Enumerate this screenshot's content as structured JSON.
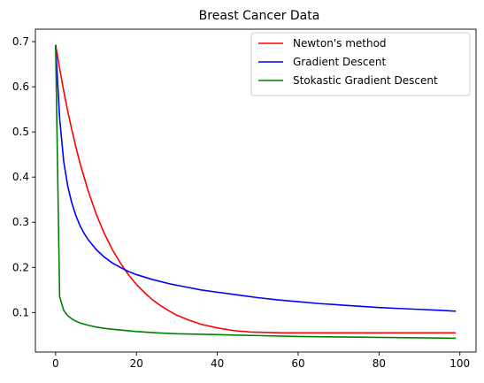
{
  "chart_data": {
    "type": "line",
    "title": "Breast Cancer Data",
    "xlabel": "",
    "ylabel": "",
    "xlim": [
      -5,
      104
    ],
    "ylim": [
      0.0125,
      0.7275
    ],
    "xticks": [
      0,
      20,
      40,
      60,
      80,
      100
    ],
    "yticks": [
      0.1,
      0.2,
      0.3,
      0.4,
      0.5,
      0.6,
      0.7
    ],
    "grid": false,
    "legend_position": "top-right",
    "series": [
      {
        "name": "Newton's method",
        "color": "#ff0000",
        "x": [
          0,
          1,
          2,
          3,
          4,
          5,
          6,
          8,
          10,
          12,
          14,
          16,
          18,
          20,
          22,
          24,
          26,
          28,
          30,
          33,
          36,
          40,
          44,
          48,
          52,
          56,
          60,
          65,
          70,
          75,
          80,
          85,
          90,
          95,
          99
        ],
        "y": [
          0.693,
          0.64,
          0.591,
          0.546,
          0.505,
          0.467,
          0.432,
          0.371,
          0.319,
          0.276,
          0.24,
          0.21,
          0.184,
          0.162,
          0.144,
          0.128,
          0.115,
          0.104,
          0.094,
          0.083,
          0.074,
          0.066,
          0.06,
          0.057,
          0.056,
          0.055,
          0.055,
          0.055,
          0.055,
          0.055,
          0.055,
          0.055,
          0.055,
          0.055,
          0.055
        ]
      },
      {
        "name": "Gradient Descent",
        "color": "#0000ff",
        "x": [
          0,
          1,
          2,
          3,
          4,
          5,
          6,
          7,
          8,
          10,
          12,
          14,
          16,
          18,
          20,
          24,
          28,
          32,
          36,
          40,
          45,
          50,
          55,
          60,
          65,
          70,
          75,
          80,
          85,
          90,
          95,
          99
        ],
        "y": [
          0.693,
          0.53,
          0.435,
          0.38,
          0.343,
          0.315,
          0.293,
          0.276,
          0.262,
          0.24,
          0.223,
          0.21,
          0.2,
          0.191,
          0.184,
          0.173,
          0.164,
          0.157,
          0.15,
          0.145,
          0.139,
          0.133,
          0.128,
          0.124,
          0.12,
          0.117,
          0.114,
          0.111,
          0.109,
          0.107,
          0.105,
          0.103
        ]
      },
      {
        "name": "Stokastic Gradient Descent",
        "color": "#008000",
        "x": [
          0,
          1,
          2,
          3,
          4,
          5,
          6,
          8,
          10,
          12,
          15,
          20,
          25,
          30,
          40,
          50,
          60,
          70,
          80,
          90,
          99
        ],
        "y": [
          0.693,
          0.135,
          0.105,
          0.093,
          0.086,
          0.081,
          0.077,
          0.072,
          0.068,
          0.065,
          0.062,
          0.058,
          0.055,
          0.053,
          0.051,
          0.049,
          0.047,
          0.046,
          0.045,
          0.044,
          0.043
        ]
      }
    ]
  }
}
